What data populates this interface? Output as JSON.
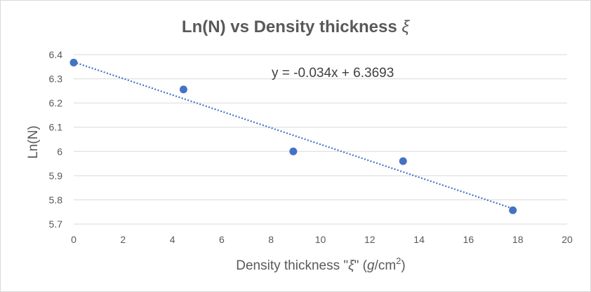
{
  "chart_data": {
    "type": "scatter",
    "title_main": "Ln(N) vs Density thickness ",
    "title_symbol": "ξ",
    "xlabel_main": "Density thickness \"",
    "xlabel_symbol": "ξ",
    "xlabel_quote": "\" ",
    "xlabel_unit_open": "(",
    "xlabel_unit_g": "g",
    "xlabel_unit_rest": "/cm",
    "xlabel_unit_sup": "2",
    "xlabel_unit_close": ")",
    "ylabel": "Ln(N)",
    "xlim": [
      0,
      20
    ],
    "ylim": [
      5.7,
      6.4
    ],
    "xticks": [
      "0",
      "2",
      "4",
      "6",
      "8",
      "10",
      "12",
      "14",
      "16",
      "18",
      "20"
    ],
    "yticks": [
      "5.7",
      "5.8",
      "5.9",
      "6",
      "6.1",
      "6.2",
      "6.3",
      "6.4"
    ],
    "grid": true,
    "series": [
      {
        "x": [
          0,
          4.45,
          8.9,
          13.35,
          17.8
        ],
        "y": [
          6.367,
          6.256,
          6.0,
          5.96,
          5.757
        ]
      }
    ],
    "trendline": {
      "slope": -0.034,
      "intercept": 6.3693,
      "x_range": [
        0,
        17.8
      ]
    },
    "equation": "y = -0.034x + 6.3693",
    "colors": {
      "marker": "#4472c4",
      "trendline": "#4472c4",
      "text": "#595959",
      "grid": "#d9d9d9"
    }
  }
}
